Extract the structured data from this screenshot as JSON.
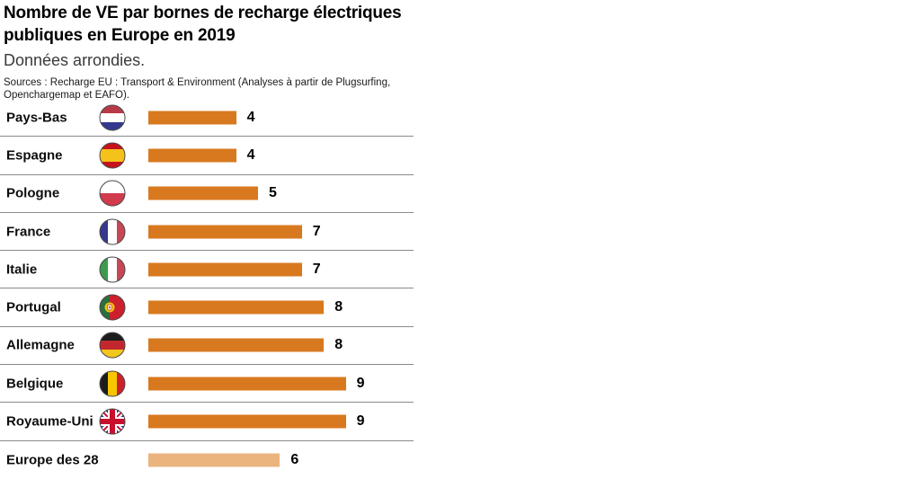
{
  "header": {
    "title_line1": "Nombre de VE par bornes de recharge électriques",
    "title_line2": "publiques en Europe en 2019",
    "subtitle": "Données arrondies.",
    "sources_line1": "Sources : Recharge EU : Transport & Environment (Analyses à partir de Plugsurfing,",
    "sources_line2": "Openchargemap et EAFO)."
  },
  "colors": {
    "bar": "#d8791f",
    "bar_light": "#eab47f",
    "separator": "#8a8a8a"
  },
  "rows": [
    {
      "country": "Pays-Bas",
      "value": 4,
      "flag": "netherlands",
      "style": "normal"
    },
    {
      "country": "Espagne",
      "value": 4,
      "flag": "spain",
      "style": "normal"
    },
    {
      "country": "Pologne",
      "value": 5,
      "flag": "poland",
      "style": "normal"
    },
    {
      "country": "France",
      "value": 7,
      "flag": "france",
      "style": "normal"
    },
    {
      "country": "Italie",
      "value": 7,
      "flag": "italy",
      "style": "normal"
    },
    {
      "country": "Portugal",
      "value": 8,
      "flag": "portugal",
      "style": "normal"
    },
    {
      "country": "Allemagne",
      "value": 8,
      "flag": "germany",
      "style": "normal"
    },
    {
      "country": "Belgique",
      "value": 9,
      "flag": "belgium",
      "style": "normal"
    },
    {
      "country": "Royaume-Uni",
      "value": 9,
      "flag": "united-kingdom",
      "style": "normal"
    },
    {
      "country": "Europe des 28",
      "value": 6,
      "flag": null,
      "style": "light"
    }
  ],
  "chart_data": {
    "type": "bar",
    "orientation": "horizontal",
    "title": "Nombre de VE par bornes de recharge électriques publiques en Europe en 2019",
    "subtitle": "Données arrondies.",
    "source": "Sources : Recharge EU : Transport & Environment (Analyses à partir de Plugsurfing, Openchargemap et EAFO).",
    "categories": [
      "Pays-Bas",
      "Espagne",
      "Pologne",
      "France",
      "Italie",
      "Portugal",
      "Allemagne",
      "Belgique",
      "Royaume-Uni",
      "Europe des 28"
    ],
    "values": [
      4,
      4,
      5,
      7,
      7,
      8,
      8,
      9,
      9,
      6
    ],
    "value_labels_shown": true,
    "xlim": [
      0,
      10
    ],
    "grid": false,
    "legend": false,
    "bar_color": "#d8791f",
    "highlight": {
      "category": "Europe des 28",
      "color": "#eab47f"
    }
  }
}
